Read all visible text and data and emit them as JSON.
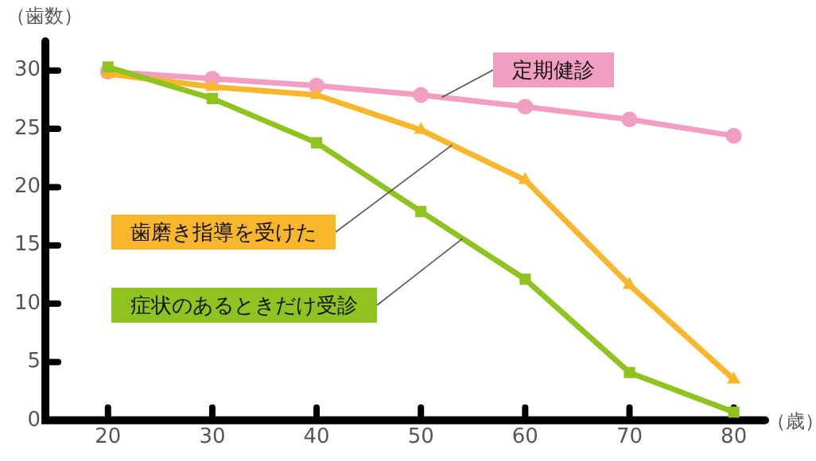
{
  "chart_data": {
    "type": "line",
    "x": [
      20,
      30,
      40,
      50,
      60,
      70,
      80
    ],
    "series": [
      {
        "name": "定期健診",
        "color": "#f19ec2",
        "marker": "circle",
        "values": [
          29.9,
          29.3,
          28.7,
          27.9,
          26.9,
          25.8,
          24.4
        ]
      },
      {
        "name": "歯磨き指導を受けた",
        "color": "#f8b62d",
        "marker": "triangle",
        "values": [
          29.7,
          28.6,
          27.9,
          24.9,
          20.6,
          11.6,
          3.5
        ]
      },
      {
        "name": "症状のあるときだけ受診",
        "color": "#8fc31f",
        "marker": "square",
        "values": [
          30.3,
          27.6,
          23.8,
          17.9,
          12.1,
          4.1,
          0.7
        ]
      }
    ],
    "xlabel": "（歳）",
    "ylabel": "（歯数）",
    "xlim": [
      14,
      83
    ],
    "xticks": [
      20,
      30,
      40,
      50,
      60,
      70,
      80
    ],
    "ylim": [
      0,
      32.5
    ],
    "yticks": [
      0,
      5,
      10,
      15,
      20,
      25,
      30
    ],
    "grid": false,
    "line_style": "solid"
  }
}
